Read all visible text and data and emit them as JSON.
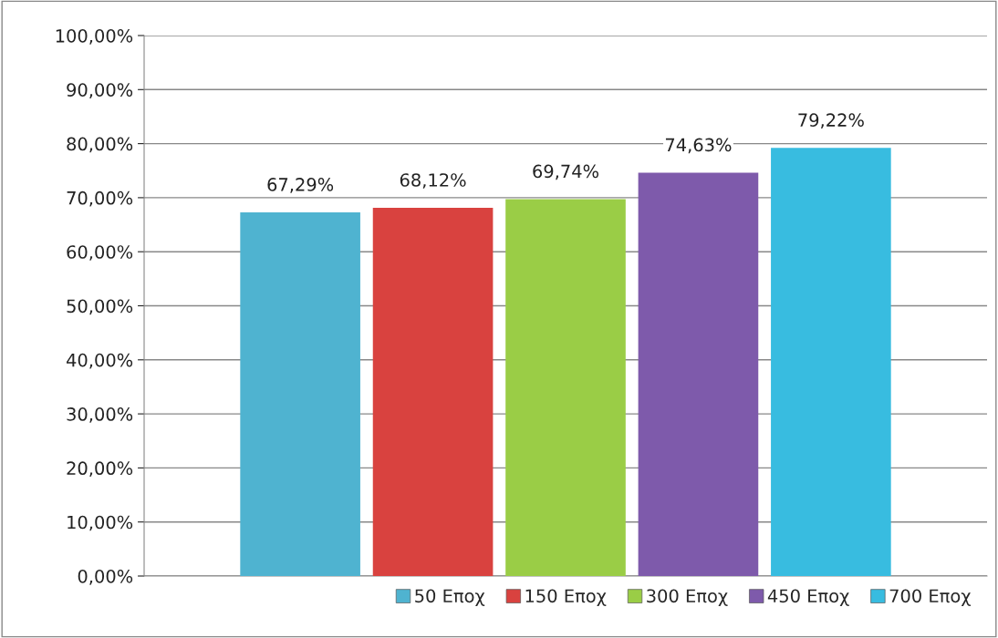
{
  "chart_data": {
    "type": "bar",
    "categories": [
      null
    ],
    "series": [
      {
        "name": "50 Εποχ",
        "color": "#4fb3d0",
        "values": [
          67.29
        ],
        "value_labels": [
          "67,29%"
        ]
      },
      {
        "name": "150 Εποχ",
        "color": "#d9423f",
        "values": [
          68.12
        ],
        "value_labels": [
          "68,12%"
        ]
      },
      {
        "name": "300 Εποχ",
        "color": "#9acd46",
        "values": [
          69.74
        ],
        "value_labels": [
          "69,74%"
        ]
      },
      {
        "name": "450 Εποχ",
        "color": "#7e5aab",
        "values": [
          74.63
        ],
        "value_labels": [
          "74,63%"
        ]
      },
      {
        "name": "700 Εποχ",
        "color": "#38bce0",
        "values": [
          79.22
        ],
        "value_labels": [
          "79,22%"
        ]
      }
    ],
    "ylim": [
      0,
      100
    ],
    "yticks": [
      {
        "value": 0,
        "label": "0,00%"
      },
      {
        "value": 10,
        "label": "10,00%"
      },
      {
        "value": 20,
        "label": "20,00%"
      },
      {
        "value": 30,
        "label": "30,00%"
      },
      {
        "value": 40,
        "label": "40,00%"
      },
      {
        "value": 50,
        "label": "50,00%"
      },
      {
        "value": 60,
        "label": "60,00%"
      },
      {
        "value": 70,
        "label": "70,00%"
      },
      {
        "value": 80,
        "label": "80,00%"
      },
      {
        "value": 90,
        "label": "90,00%"
      },
      {
        "value": 100,
        "label": "100,00%"
      }
    ],
    "grid": "y",
    "legend": "bottom right"
  }
}
